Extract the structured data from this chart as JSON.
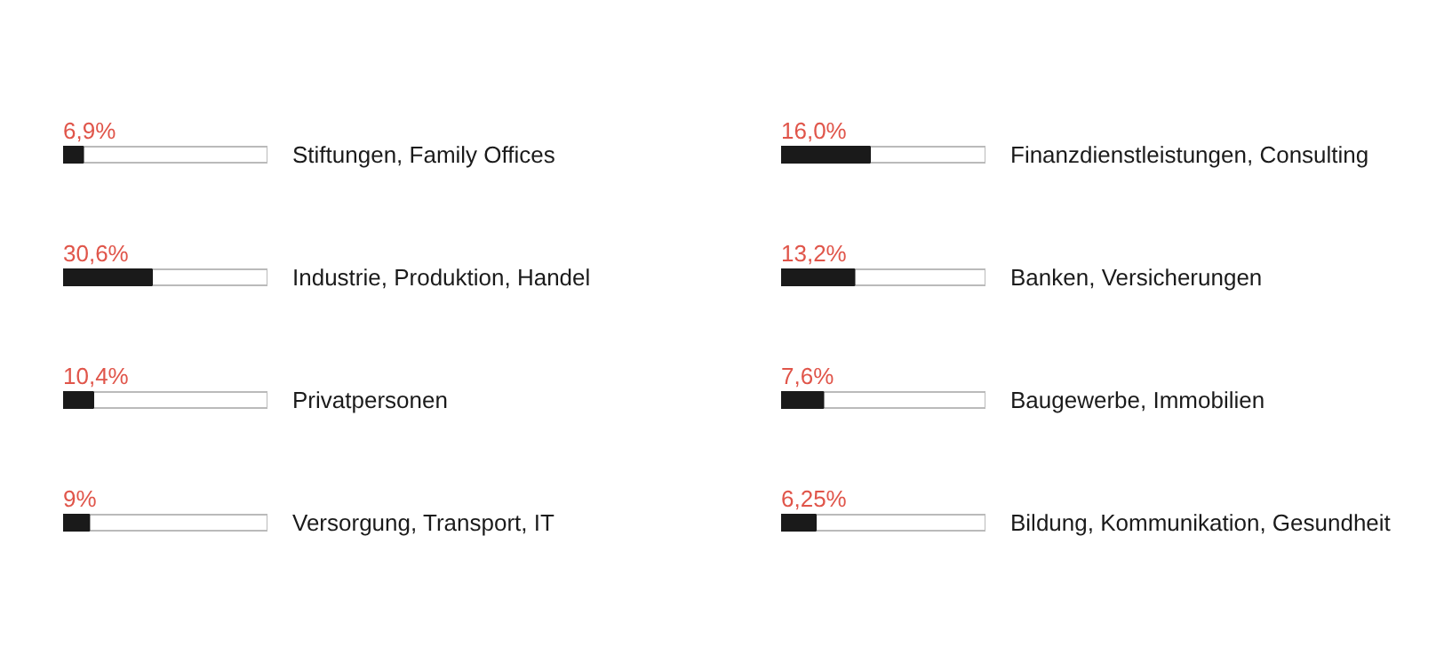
{
  "chart_data": [
    {
      "type": "bar",
      "orientation": "horizontal",
      "categories": [
        "Stiftungen, Family Offices",
        "Industrie, Produktion, Handel",
        "Privatpersonen",
        "Versorgung, Transport, IT"
      ],
      "values": [
        6.9,
        30.6,
        10.4,
        9
      ],
      "value_labels": [
        "6,9%",
        "30,6%",
        "10,4%",
        "9%"
      ],
      "color": "#1a1a1a",
      "grid": false,
      "tick_labels": "y"
    },
    {
      "type": "bar",
      "orientation": "horizontal",
      "categories": [
        "Finanzdienstleistungen, Consulting",
        "Banken, Versicherungen",
        "Baugewerbe, Immobilien",
        "Bildung, Kommunikation, Gesundheit"
      ],
      "values": [
        16.0,
        13.2,
        7.6,
        6.25
      ],
      "value_labels": [
        "16,0%",
        "13,2%",
        "7,6%",
        "6,25%"
      ],
      "color": "#1a1a1a",
      "grid": false,
      "tick_labels": "y"
    }
  ]
}
